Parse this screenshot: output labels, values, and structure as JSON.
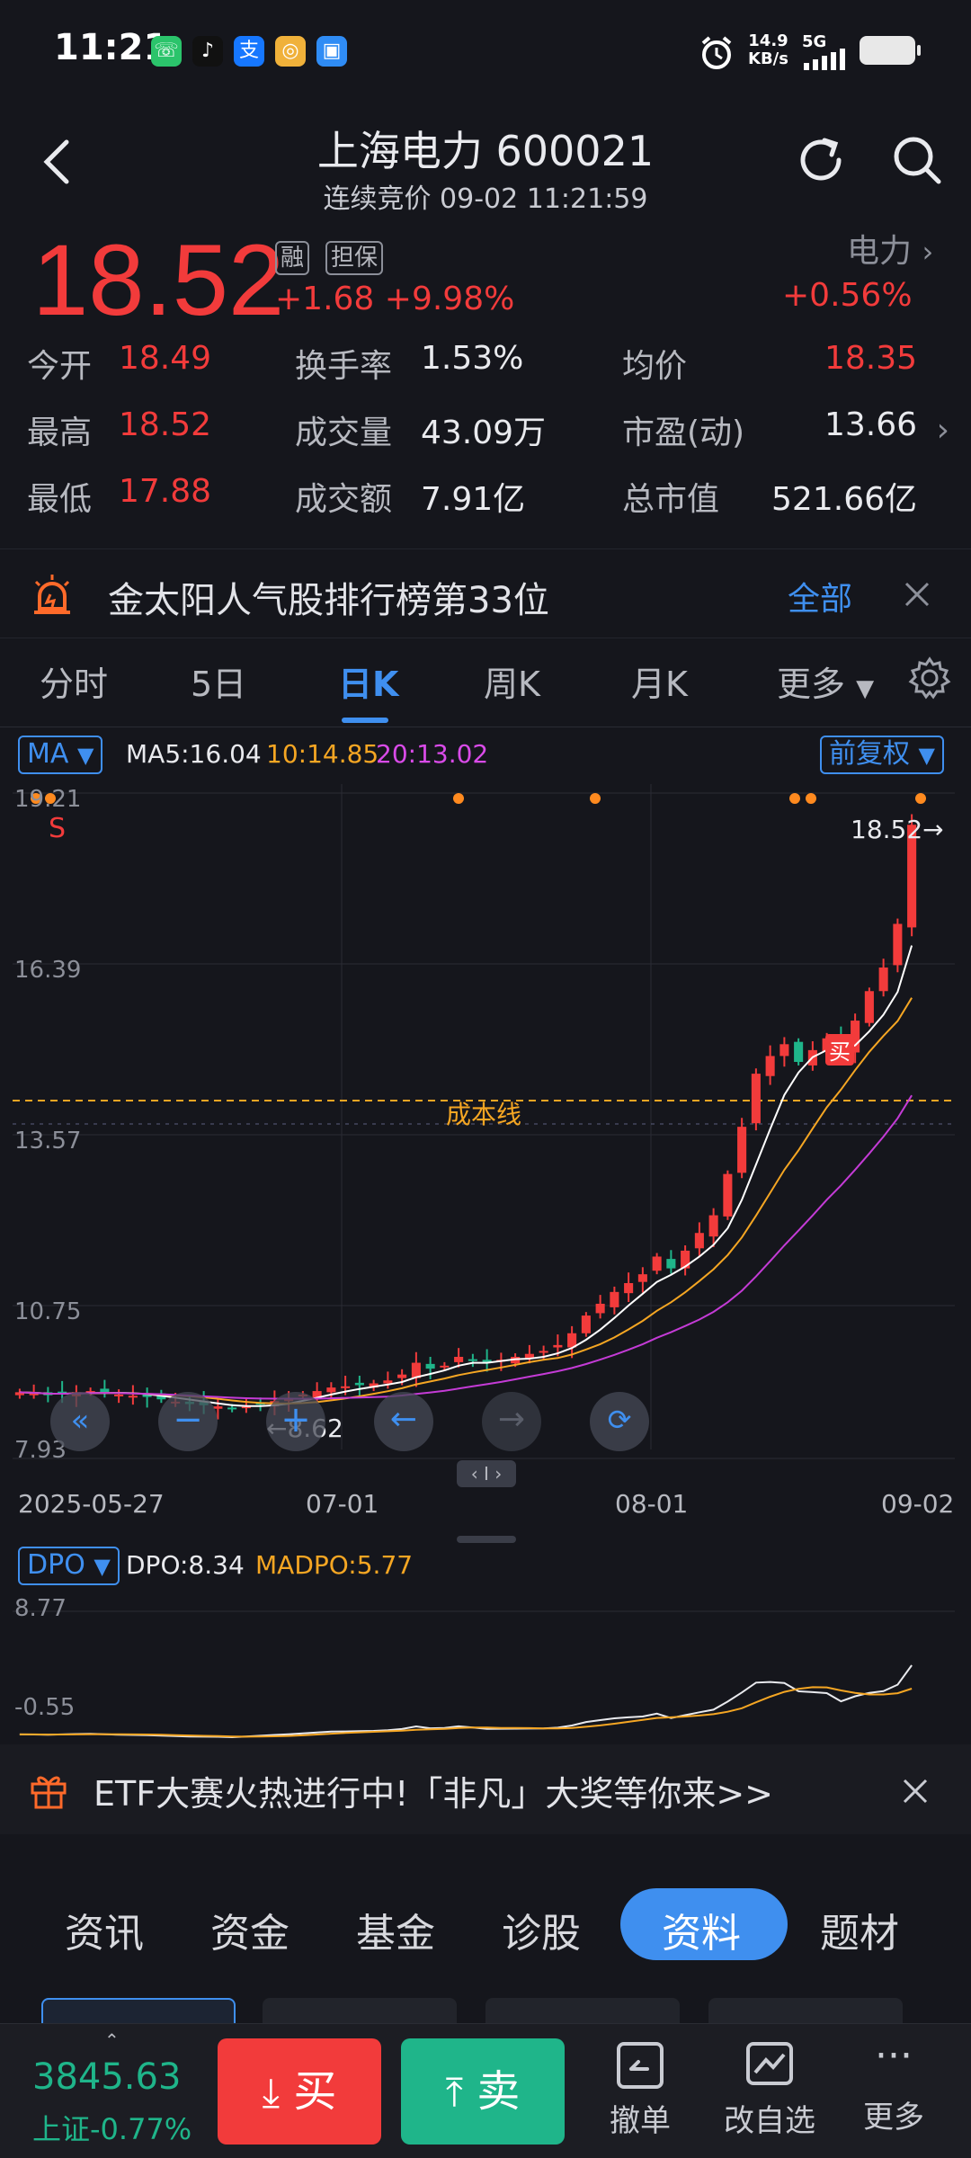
{
  "status_bar": {
    "time": "11:21",
    "net_speed_value": "14.9",
    "net_speed_unit": "KB/s",
    "net_type": "5G",
    "app_icons": [
      "phone-app-icon",
      "tiktok-icon",
      "alipay-icon",
      "coin-app-icon",
      "chat-app-icon"
    ]
  },
  "header": {
    "title": "上海电力 600021",
    "subtitle": "连续竞价 09-02 11:21:59"
  },
  "quote": {
    "price": "18.52",
    "tag_margin": "融",
    "tag_guarantee": "担保",
    "change": "+1.68",
    "change_pct": "+9.98%",
    "industry": "电力",
    "industry_change": "+0.56%",
    "rows": [
      {
        "l1": "今开",
        "v1": "18.49",
        "l2": "换手率",
        "v2": "1.53%",
        "l3": "均价",
        "v3": "18.35"
      },
      {
        "l1": "最高",
        "v1": "18.52",
        "l2": "成交量",
        "v2": "43.09万",
        "l3": "市盈(动)",
        "v3": "13.66"
      },
      {
        "l1": "最低",
        "v1": "17.88",
        "l2": "成交额",
        "v2": "7.91亿",
        "l3": "总市值",
        "v3": "521.66亿"
      }
    ]
  },
  "notice": {
    "text": "金太阳人气股排行榜第33位",
    "all_label": "全部"
  },
  "kline_tabs": [
    "分时",
    "5日",
    "日K",
    "周K",
    "月K",
    "更多"
  ],
  "kline_active": "日K",
  "chart": {
    "ma_selector": "MA",
    "ma5": "MA5:16.04",
    "ma10": "10:14.85",
    "ma20": "20:13.02",
    "adjust": "前复权",
    "y_ticks": [
      "19.21",
      "16.39",
      "13.57",
      "10.75",
      "7.93"
    ],
    "x_ticks": [
      "2025-05-27",
      "07-01",
      "08-01",
      "09-02"
    ],
    "cost_line_label": "成本线",
    "last_price_label": "18.52→",
    "low_label": "←8.62",
    "sell_marker": "S",
    "buy_marker": "买",
    "scroll_handle": "‹ I ›",
    "dpo_selector": "DPO",
    "dpo_value": "DPO:8.34",
    "madpo_value": "MADPO:5.77",
    "dpo_y_ticks": [
      "8.77",
      "-0.55"
    ],
    "colors": {
      "up": "#f23b3b",
      "down": "#1fb58a",
      "ma5": "#ffffff",
      "ma10": "#f5a623",
      "ma20": "#c43bd6"
    }
  },
  "chart_data": {
    "type": "candlestick",
    "x_range": [
      "2025-05-27",
      "2025-09-02"
    ],
    "y_range": [
      7.93,
      19.21
    ],
    "last_close": 18.52,
    "low_marker": 8.62,
    "closes": [
      8.9,
      8.88,
      8.85,
      8.87,
      8.9,
      8.92,
      8.9,
      8.86,
      8.84,
      8.82,
      8.78,
      8.74,
      8.7,
      8.68,
      8.66,
      8.62,
      8.66,
      8.7,
      8.75,
      8.8,
      8.86,
      8.92,
      8.98,
      9.0,
      9.02,
      9.05,
      9.1,
      9.2,
      9.4,
      9.3,
      9.35,
      9.5,
      9.45,
      9.4,
      9.45,
      9.5,
      9.55,
      9.6,
      9.7,
      9.9,
      10.2,
      10.4,
      10.6,
      10.75,
      10.9,
      11.2,
      11.0,
      11.3,
      11.6,
      11.9,
      12.6,
      13.4,
      14.3,
      14.6,
      14.8,
      14.5,
      14.7,
      14.9,
      14.6,
      15.2,
      15.7,
      16.1,
      16.84,
      18.52
    ],
    "ma5_last": 16.04,
    "ma10_last": 14.85,
    "ma20_last": 13.02,
    "dpo_last": 8.34,
    "madpo_last": 5.77
  },
  "etf_banner": {
    "text": "ETF大赛火热进行中!「非凡」大奖等你来>>"
  },
  "info_tabs": [
    "资讯",
    "资金",
    "基金",
    "诊股",
    "资料",
    "题材"
  ],
  "info_active": "资料",
  "bottom_bar": {
    "index_value": "3845.63",
    "index_label": "上证-0.77%",
    "buy_label": "买",
    "sell_label": "卖",
    "cancel_label": "撤单",
    "watchlist_label": "改自选",
    "more_label": "更多"
  }
}
